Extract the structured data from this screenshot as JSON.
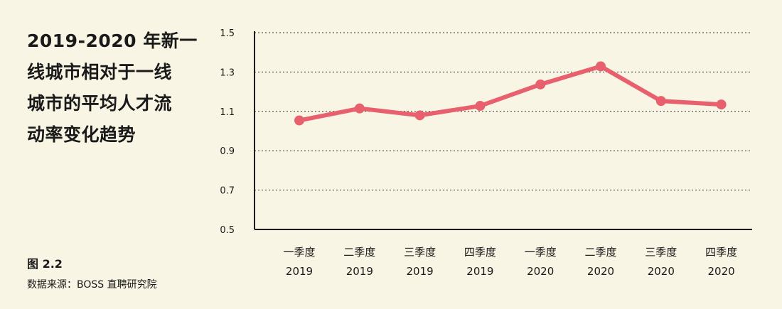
{
  "title_lines": [
    "2019-2020 年新一",
    "线城市相对于一线",
    "城市的平均人才流",
    "动率变化趋势"
  ],
  "figure_label": "图 2.2",
  "source": "数据来源：BOSS 直聘研究院",
  "colors": {
    "line": "#e8606e",
    "axis": "#1a1a1a",
    "grid": "#333333",
    "background": "#f9f5e4"
  },
  "chart_data": {
    "type": "line",
    "categories": [
      [
        "一季度",
        "2019"
      ],
      [
        "二季度",
        "2019"
      ],
      [
        "三季度",
        "2019"
      ],
      [
        "四季度",
        "2019"
      ],
      [
        "一季度",
        "2020"
      ],
      [
        "二季度",
        "2020"
      ],
      [
        "三季度",
        "2020"
      ],
      [
        "四季度",
        "2020"
      ]
    ],
    "series": [
      {
        "values": [
          1.054,
          1.115,
          1.08,
          1.128,
          1.237,
          1.329,
          1.153,
          1.135
        ]
      }
    ],
    "yticks": [
      "0.5",
      "0.7",
      "0.9",
      "1.1",
      "1.3",
      "1.5"
    ],
    "ylim": [
      0.5,
      1.5
    ],
    "grid": true
  }
}
